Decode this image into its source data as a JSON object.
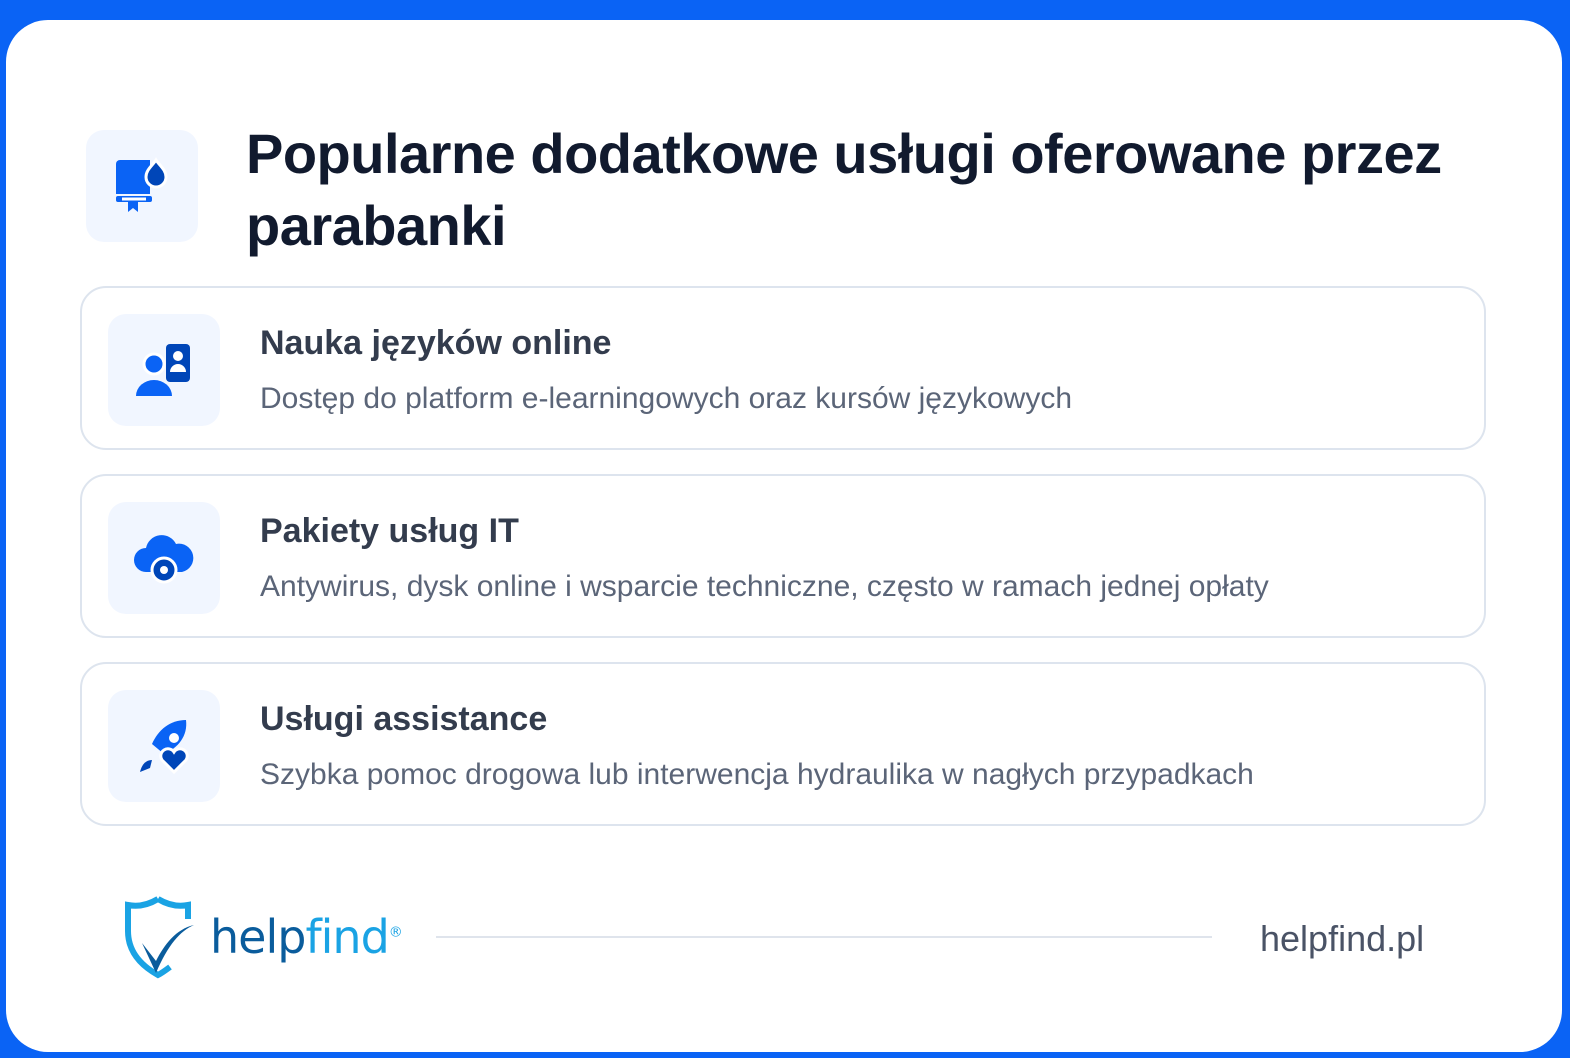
{
  "header": {
    "title": "Popularne dodatkowe usługi oferowane przez parabanki",
    "icon": "book-drop-icon"
  },
  "items": [
    {
      "title": "Nauka języków online",
      "description": "Dostęp do platform e-learningowych oraz kursów językowych",
      "icon": "online-tutor-icon"
    },
    {
      "title": "Pakiety usług IT",
      "description": "Antywirus, dysk online i wsparcie techniczne, często w ramach jednej opłaty",
      "icon": "cloud-gear-icon"
    },
    {
      "title": "Usługi assistance",
      "description": "Szybka pomoc drogowa lub interwencja hydraulika w nagłych przypadkach",
      "icon": "rocket-heart-icon"
    }
  ],
  "footer": {
    "logo": {
      "part1": "help",
      "part2": "find",
      "reg": "®"
    },
    "site": "helpfind.pl"
  },
  "colors": {
    "accent": "#0a63f5",
    "dark_accent": "#0046b8",
    "logo_dark": "#0a5c9c",
    "logo_light": "#1aa3e4"
  }
}
